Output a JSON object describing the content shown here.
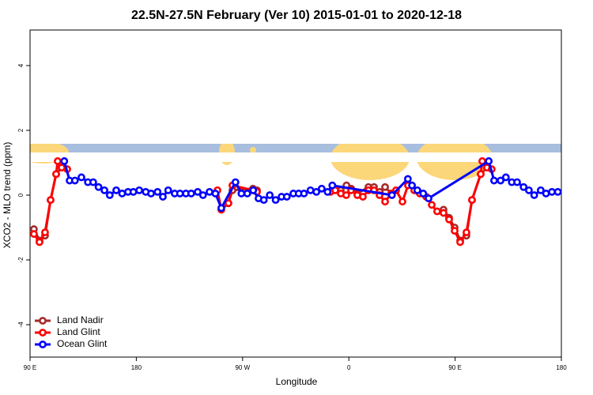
{
  "chart_data": {
    "type": "line",
    "title": "22.5N-27.5N February (Ver 10)   2015-01-01 to 2020-12-18",
    "xlabel": "Longitude",
    "ylabel": "XCO2 - MLO trend (ppm)",
    "xlim": [
      90,
      540
    ],
    "ylim": [
      -5,
      5
    ],
    "xticks": [
      {
        "value": 90,
        "label": "90 E"
      },
      180,
      {
        "value": 270,
        "label": "90 W"
      },
      {
        "value": 360,
        "label": "0"
      },
      {
        "value": 450,
        "label": "90 E"
      },
      {
        "value": 540,
        "label": "180"
      }
    ],
    "yticks": [
      -4,
      -2,
      0,
      2,
      4
    ],
    "legend": "bottomleft",
    "series": [
      {
        "name": "Land Nadir",
        "color": "#a52a2a",
        "x": [
          93.3,
          98,
          102.7,
          107.4,
          112.1,
          116.8,
          null,
          258,
          261.4,
          278.8,
          282.2,
          null,
          353.2,
          358,
          362,
          367.2,
          376.6,
          381.3,
          386.2,
          390.7,
          396,
          null,
          440.2,
          444.9,
          449.6,
          454.3,
          459.6,
          464.3,
          471.7,
          477
        ],
        "values": [
          -1.05,
          -1.4,
          -1.25,
          -0.15,
          0.65,
          0.85,
          null,
          -0.25,
          0.15,
          0.2,
          0.15,
          null,
          0.15,
          0.3,
          0.2,
          0.05,
          0.25,
          0.25,
          0.1,
          0.25,
          0.05,
          null,
          -0.45,
          -0.7,
          -1.0,
          -1.4,
          -1.25,
          -0.15,
          0.65,
          0.85
        ]
      },
      {
        "name": "Land Glint",
        "color": "#ff0000",
        "x": [
          93.3,
          98,
          102.7,
          107.4,
          112.1,
          113.4,
          116.8,
          121.5,
          null,
          248.7,
          252,
          258,
          261.4,
          278.8,
          282.2,
          null,
          344.4,
          348.5,
          353.2,
          357.8,
          361.9,
          367.2,
          371.9,
          376.6,
          381.3,
          386,
          390.7,
          396,
          400,
          405.4,
          410.1,
          415.4,
          420.1,
          425.5,
          430.2,
          434.8,
          440.2,
          444.9,
          449.6,
          454.3,
          459.6,
          464.3,
          471.7,
          473,
          477,
          481
        ],
        "values": [
          -1.2,
          -1.45,
          -1.15,
          -0.15,
          0.65,
          1.05,
          0.85,
          0.8,
          null,
          0.15,
          -0.45,
          -0.25,
          0.3,
          0.15,
          0.1,
          null,
          0.1,
          0.15,
          0.05,
          0,
          0.15,
          0,
          -0.05,
          0.15,
          0.15,
          0,
          -0.2,
          0.05,
          0.15,
          -0.2,
          0.3,
          0.15,
          0.05,
          -0.05,
          -0.3,
          -0.5,
          -0.55,
          -0.75,
          -1.1,
          -1.45,
          -1.15,
          -0.15,
          0.65,
          1.05,
          0.85,
          0.8
        ]
      },
      {
        "name": "Ocean Glint",
        "color": "#0000ff",
        "x": [
          119,
          123.5,
          128,
          133.5,
          139,
          143.5,
          148,
          153,
          157.5,
          163,
          168,
          173,
          177.5,
          182.5,
          188,
          192.5,
          198,
          202.5,
          207,
          212.5,
          217,
          222,
          226.5,
          232,
          236.5,
          242,
          247,
          252,
          264,
          269,
          274,
          279,
          283.5,
          288,
          293,
          298,
          303,
          307.5,
          313,
          317.5,
          322,
          327.5,
          332.5,
          337,
          342,
          346,
          396.5,
          410,
          413.5,
          418,
          423,
          427.5,
          478.5,
          483,
          488.5,
          493,
          498,
          502.5,
          508,
          512.5,
          517,
          522.5,
          527,
          532,
          537
        ],
        "values": [
          1.05,
          0.45,
          0.45,
          0.55,
          0.4,
          0.4,
          0.25,
          0.15,
          0,
          0.15,
          0.05,
          0.1,
          0.1,
          0.15,
          0.1,
          0.05,
          0.1,
          -0.05,
          0.15,
          0.05,
          0.05,
          0.05,
          0.05,
          0.1,
          0,
          0.1,
          0.05,
          -0.4,
          0.4,
          0.05,
          0.05,
          0.15,
          -0.1,
          -0.15,
          0,
          -0.15,
          -0.05,
          -0.05,
          0.05,
          0.05,
          0.05,
          0.15,
          0.1,
          0.2,
          0.1,
          0.3,
          0,
          0.5,
          0.3,
          0.15,
          0.05,
          -0.1,
          1.05,
          0.45,
          0.45,
          0.55,
          0.4,
          0.4,
          0.25,
          0.15,
          0,
          0.15,
          0.05,
          0.1,
          0.1
        ]
      }
    ]
  }
}
